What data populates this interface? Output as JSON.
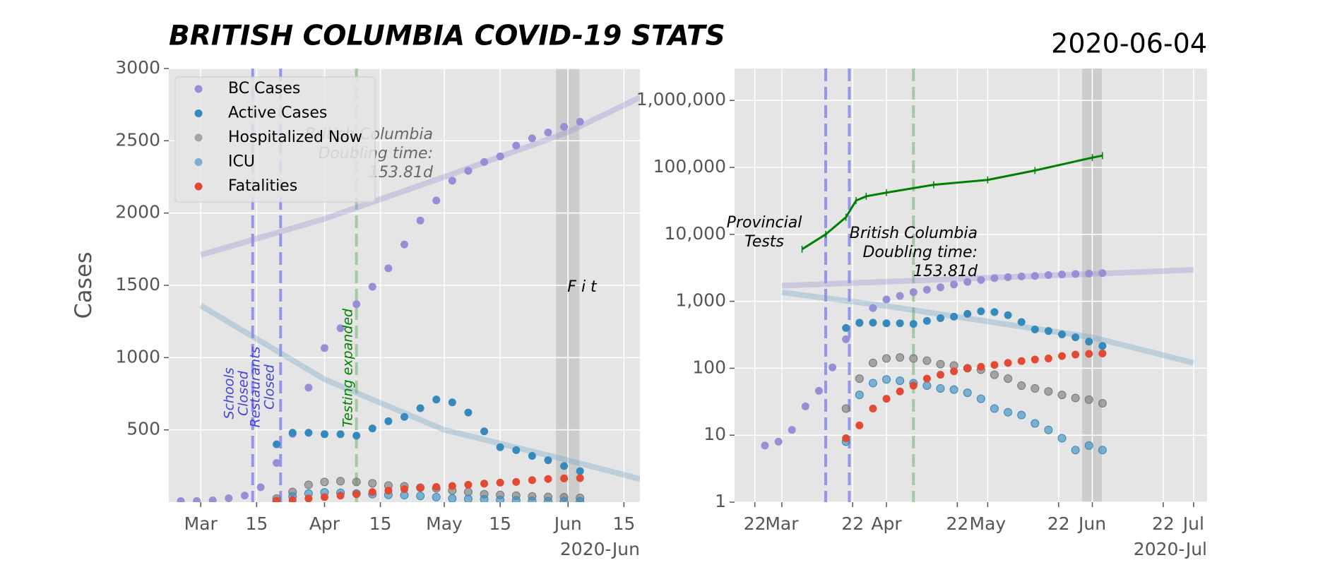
{
  "chart_data": [
    {
      "type": "scatter",
      "title": "BRITISH COLUMBIA COVID-19 STATS",
      "ylabel": "Cases",
      "x_offset_label": "2020-Jun",
      "xlim": [
        "2020-02-22",
        "2020-06-19"
      ],
      "ylim": [
        0,
        3000
      ],
      "grid": true,
      "legend": "upper left",
      "xticks": [
        {
          "value": "2020-03-01",
          "label": "Mar"
        },
        {
          "value": "2020-03-15",
          "label": "15"
        },
        {
          "value": "2020-04-01",
          "label": "Apr"
        },
        {
          "value": "2020-04-15",
          "label": "15"
        },
        {
          "value": "2020-05-01",
          "label": "May"
        },
        {
          "value": "2020-05-15",
          "label": "15"
        },
        {
          "value": "2020-06-01",
          "label": "Jun"
        },
        {
          "value": "2020-06-15",
          "label": "15"
        }
      ],
      "yticks": [
        500,
        1000,
        1500,
        2000,
        2500,
        3000
      ],
      "x": [
        "2020-02-25",
        "2020-02-29",
        "2020-03-04",
        "2020-03-08",
        "2020-03-12",
        "2020-03-16",
        "2020-03-20",
        "2020-03-24",
        "2020-03-28",
        "2020-04-01",
        "2020-04-05",
        "2020-04-09",
        "2020-04-13",
        "2020-04-17",
        "2020-04-21",
        "2020-04-25",
        "2020-04-29",
        "2020-05-03",
        "2020-05-07",
        "2020-05-11",
        "2020-05-15",
        "2020-05-19",
        "2020-05-23",
        "2020-05-27",
        "2020-05-31",
        "2020-06-04"
      ],
      "series": [
        {
          "name": "BC Cases",
          "color": "#988ED5",
          "alpha": 1,
          "values": [
            7,
            8,
            12,
            27,
            46,
            103,
            271,
            472,
            792,
            1066,
            1203,
            1370,
            1490,
            1618,
            1783,
            1948,
            2087,
            2224,
            2292,
            2353,
            2392,
            2467,
            2517,
            2558,
            2597,
            2632
          ]
        },
        {
          "name": "Active Cases",
          "color": "#348ABD",
          "alpha": 1,
          "values": [
            null,
            null,
            null,
            null,
            null,
            null,
            400,
            480,
            480,
            470,
            470,
            460,
            510,
            560,
            590,
            650,
            710,
            690,
            620,
            490,
            380,
            360,
            320,
            290,
            250,
            215
          ]
        },
        {
          "name": "Hospitalized Now",
          "color": "#777777",
          "alpha": 0.6,
          "values": [
            null,
            null,
            null,
            null,
            null,
            null,
            25,
            70,
            120,
            140,
            145,
            140,
            130,
            115,
            110,
            100,
            95,
            80,
            70,
            55,
            50,
            45,
            40,
            36,
            34,
            30
          ]
        },
        {
          "name": "ICU",
          "color": "#348ABD",
          "alpha": 0.6,
          "values": [
            null,
            null,
            null,
            null,
            null,
            null,
            8,
            40,
            60,
            68,
            65,
            60,
            55,
            50,
            48,
            43,
            35,
            25,
            22,
            20,
            15,
            12,
            9,
            6,
            7,
            6
          ]
        },
        {
          "name": "Fatalities",
          "color": "#E24A33",
          "alpha": 1,
          "values": [
            null,
            null,
            null,
            null,
            null,
            null,
            9,
            14,
            25,
            35,
            45,
            55,
            70,
            80,
            90,
            100,
            105,
            112,
            120,
            128,
            135,
            140,
            152,
            160,
            164,
            166
          ]
        }
      ],
      "fits": [
        {
          "color": "#988ED5",
          "x": [
            "2020-03-01",
            "2020-04-01",
            "2020-05-01",
            "2020-06-01",
            "2020-06-19"
          ],
          "values": [
            1710,
            1960,
            2250,
            2560,
            2800
          ]
        },
        {
          "color": "#6FA3C7",
          "x": [
            "2020-03-01",
            "2020-04-01",
            "2020-05-01",
            "2020-06-01",
            "2020-06-19"
          ],
          "values": [
            1360,
            850,
            500,
            290,
            160
          ]
        }
      ],
      "vlines": [
        {
          "x": "2020-03-14",
          "color": "#7B7BEE",
          "label_color": "#4444DD",
          "label": [
            "Schools",
            "Closed"
          ]
        },
        {
          "x": "2020-03-21",
          "color": "#7B7BEE",
          "label_color": "#4444DD",
          "label": [
            "Restaurants",
            "Closed"
          ]
        },
        {
          "x": "2020-04-09",
          "color": "#8FBF8F",
          "label_color": "#008000",
          "label": [
            "Testing expanded"
          ]
        }
      ],
      "bands": [
        [
          "2020-05-29",
          "2020-06-01"
        ],
        [
          "2020-06-01",
          "2020-06-04"
        ]
      ],
      "annotations": [
        [
          "British Columbia",
          "Doubling time:",
          "153.81d"
        ],
        [
          "F i t"
        ]
      ]
    },
    {
      "type": "scatter",
      "title": "2020-06-04",
      "yscale": "log",
      "x_offset_label": "2020-Jul",
      "xlim": [
        "2020-02-16",
        "2020-07-05"
      ],
      "ylim": [
        1,
        3000000
      ],
      "grid": true,
      "xticks": [
        {
          "value": "2020-02-22",
          "label": "22"
        },
        {
          "value": "2020-03-01",
          "label": "Mar"
        },
        {
          "value": "2020-03-22",
          "label": "22"
        },
        {
          "value": "2020-04-01",
          "label": "Apr"
        },
        {
          "value": "2020-04-22",
          "label": "22"
        },
        {
          "value": "2020-05-01",
          "label": "May"
        },
        {
          "value": "2020-05-22",
          "label": "22"
        },
        {
          "value": "2020-06-01",
          "label": "Jun"
        },
        {
          "value": "2020-06-22",
          "label": "22"
        },
        {
          "value": "2020-07-01",
          "label": "Jul"
        }
      ],
      "yticks": [
        1,
        10,
        100,
        {
          "value": 1000,
          "label": "1,000"
        },
        {
          "value": 10000,
          "label": "10,000"
        },
        {
          "value": 100000,
          "label": "100,000"
        },
        {
          "value": 1000000,
          "label": "1,000,000"
        }
      ],
      "x": [
        "2020-02-25",
        "2020-02-29",
        "2020-03-04",
        "2020-03-08",
        "2020-03-12",
        "2020-03-16",
        "2020-03-20",
        "2020-03-24",
        "2020-03-28",
        "2020-04-01",
        "2020-04-05",
        "2020-04-09",
        "2020-04-13",
        "2020-04-17",
        "2020-04-21",
        "2020-04-25",
        "2020-04-29",
        "2020-05-03",
        "2020-05-07",
        "2020-05-11",
        "2020-05-15",
        "2020-05-19",
        "2020-05-23",
        "2020-05-27",
        "2020-05-31",
        "2020-06-04"
      ],
      "series": [
        {
          "color": "#988ED5",
          "alpha": 1,
          "values": [
            7,
            8,
            12,
            27,
            46,
            103,
            271,
            472,
            792,
            1066,
            1203,
            1370,
            1490,
            1618,
            1783,
            1948,
            2087,
            2224,
            2292,
            2353,
            2392,
            2467,
            2517,
            2558,
            2597,
            2632
          ]
        },
        {
          "color": "#348ABD",
          "alpha": 1,
          "values": [
            null,
            null,
            null,
            null,
            null,
            null,
            400,
            480,
            480,
            470,
            470,
            460,
            510,
            560,
            590,
            650,
            710,
            690,
            620,
            490,
            380,
            360,
            320,
            290,
            250,
            215
          ]
        },
        {
          "color": "#777777",
          "alpha": 0.6,
          "values": [
            null,
            null,
            null,
            null,
            null,
            null,
            25,
            70,
            120,
            140,
            145,
            140,
            130,
            115,
            110,
            100,
            95,
            80,
            70,
            55,
            50,
            45,
            40,
            36,
            34,
            30
          ]
        },
        {
          "color": "#348ABD",
          "alpha": 0.6,
          "values": [
            null,
            null,
            null,
            null,
            null,
            null,
            8,
            40,
            60,
            68,
            65,
            60,
            55,
            50,
            48,
            43,
            35,
            25,
            22,
            20,
            15,
            12,
            9,
            6,
            7,
            6
          ]
        },
        {
          "color": "#E24A33",
          "alpha": 1,
          "values": [
            null,
            null,
            null,
            null,
            null,
            null,
            9,
            14,
            25,
            35,
            45,
            55,
            70,
            80,
            90,
            100,
            105,
            112,
            120,
            128,
            135,
            140,
            152,
            160,
            164,
            166
          ]
        }
      ],
      "tests": {
        "color": "#008000",
        "x": [
          "2020-03-07",
          "2020-03-14",
          "2020-03-20",
          "2020-03-23",
          "2020-03-26",
          "2020-04-01",
          "2020-04-15",
          "2020-05-01",
          "2020-05-15",
          "2020-06-01",
          "2020-06-04"
        ],
        "values": [
          6000,
          10000,
          18000,
          32000,
          37000,
          42000,
          55000,
          65000,
          90000,
          140000,
          150000
        ]
      },
      "fits": [
        {
          "color": "#988ED5",
          "x": [
            "2020-03-01",
            "2020-04-01",
            "2020-05-01",
            "2020-06-01",
            "2020-07-01"
          ],
          "values": [
            1710,
            1960,
            2250,
            2560,
            2950
          ]
        },
        {
          "color": "#6FA3C7",
          "x": [
            "2020-03-01",
            "2020-04-01",
            "2020-05-01",
            "2020-06-01",
            "2020-07-01"
          ],
          "values": [
            1360,
            850,
            500,
            290,
            120
          ]
        }
      ],
      "vlines": [
        {
          "x": "2020-03-14",
          "color": "#7B7BEE"
        },
        {
          "x": "2020-03-21",
          "color": "#7B7BEE"
        },
        {
          "x": "2020-04-09",
          "color": "#8FBF8F"
        }
      ],
      "bands": [
        [
          "2020-05-29",
          "2020-06-01"
        ],
        [
          "2020-06-01",
          "2020-06-04"
        ]
      ],
      "annotations": [
        [
          "Provincial",
          "Tests"
        ],
        [
          "British Columbia",
          "Doubling time:",
          "153.81d"
        ]
      ]
    }
  ]
}
